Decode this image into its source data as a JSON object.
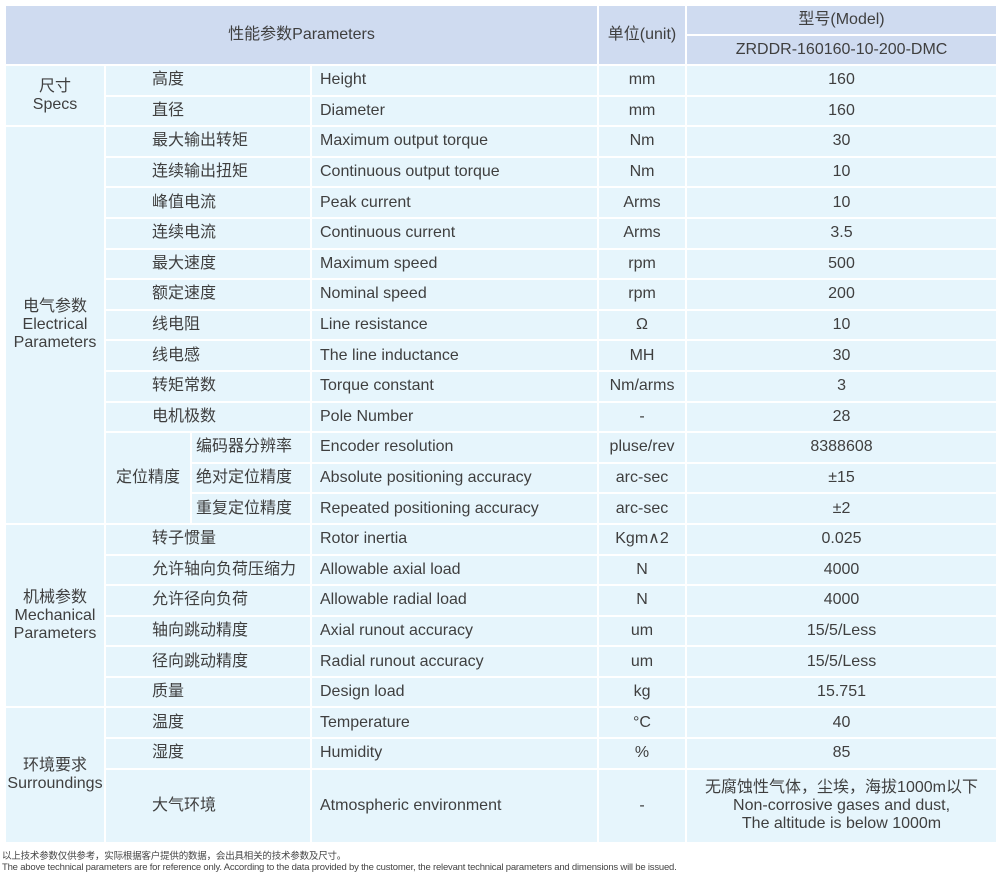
{
  "header": {
    "parameters": "性能参数Parameters",
    "unit": "单位(unit)",
    "model_label": "型号(Model)",
    "model": "ZRDDR-160160-10-200-DMC"
  },
  "groups": {
    "specs": [
      "尺寸",
      "Specs"
    ],
    "electrical": [
      "电气参数",
      "Electrical",
      "Parameters"
    ],
    "positioning": "定位精度",
    "mechanical": [
      "机械参数",
      "Mechanical",
      "Parameters"
    ],
    "surroundings": [
      "环境要求",
      "Surroundings"
    ]
  },
  "rows": [
    {
      "cn": "高度",
      "en": "Height",
      "unit": "mm",
      "value": "160"
    },
    {
      "cn": "直径",
      "en": "Diameter",
      "unit": "mm",
      "value": "160"
    },
    {
      "cn": "最大输出转矩",
      "en": "Maximum output torque",
      "unit": "Nm",
      "value": "30"
    },
    {
      "cn": "连续输出扭矩",
      "en": "Continuous output torque",
      "unit": "Nm",
      "value": "10"
    },
    {
      "cn": "峰值电流",
      "en": "Peak current",
      "unit": "Arms",
      "value": "10"
    },
    {
      "cn": "连续电流",
      "en": "Continuous current",
      "unit": "Arms",
      "value": "3.5"
    },
    {
      "cn": "最大速度",
      "en": "Maximum speed",
      "unit": "rpm",
      "value": "500"
    },
    {
      "cn": "额定速度",
      "en": "Nominal speed",
      "unit": "rpm",
      "value": "200"
    },
    {
      "cn": "线电阻",
      "en": "Line resistance",
      "unit": "Ω",
      "value": "10"
    },
    {
      "cn": "线电感",
      "en": "The line inductance",
      "unit": "MH",
      "value": "30"
    },
    {
      "cn": "转矩常数",
      "en": "Torque constant",
      "unit": "Nm/arms",
      "value": "3"
    },
    {
      "cn": "电机极数",
      "en": "Pole Number",
      "unit": "-",
      "value": "28"
    },
    {
      "cn": "编码器分辨率",
      "en": "Encoder resolution",
      "unit": "pluse/rev",
      "value": "8388608"
    },
    {
      "cn": "绝对定位精度",
      "en": "Absolute positioning accuracy",
      "unit": "arc-sec",
      "value": "±15"
    },
    {
      "cn": "重复定位精度",
      "en": "Repeated positioning accuracy",
      "unit": "arc-sec",
      "value": "±2"
    },
    {
      "cn": "转子惯量",
      "en": "Rotor inertia",
      "unit": "Kgm∧2",
      "value": "0.025"
    },
    {
      "cn": "允许轴向负荷压缩力",
      "en": "Allowable axial load",
      "unit": "N",
      "value": "4000"
    },
    {
      "cn": "允许径向负荷",
      "en": "Allowable radial load",
      "unit": "N",
      "value": "4000"
    },
    {
      "cn": "轴向跳动精度",
      "en": "Axial runout accuracy",
      "unit": "um",
      "value": "15/5/Less"
    },
    {
      "cn": "径向跳动精度",
      "en": "Radial runout accuracy",
      "unit": "um",
      "value": "15/5/Less"
    },
    {
      "cn": "质量",
      "en": "Design load",
      "unit": "kg",
      "value": "15.751"
    },
    {
      "cn": "温度",
      "en": "Temperature",
      "unit": "°C",
      "value": "40"
    },
    {
      "cn": "湿度",
      "en": "Humidity",
      "unit": "%",
      "value": "85"
    },
    {
      "cn": "大气环境",
      "en": "Atmospheric environment",
      "unit": "-",
      "value": [
        "无腐蚀性气体，尘埃，海拔1000m以下",
        "Non-corrosive gases and dust,",
        "The altitude is below 1000m"
      ]
    }
  ],
  "notes": [
    "以上技术参数仅供参考，实际根据客户提供的数据，会出具相关的技术参数及尺寸。",
    "The above technical parameters are for reference only. According to the data provided by the customer, the relevant technical parameters and dimensions will be issued."
  ]
}
